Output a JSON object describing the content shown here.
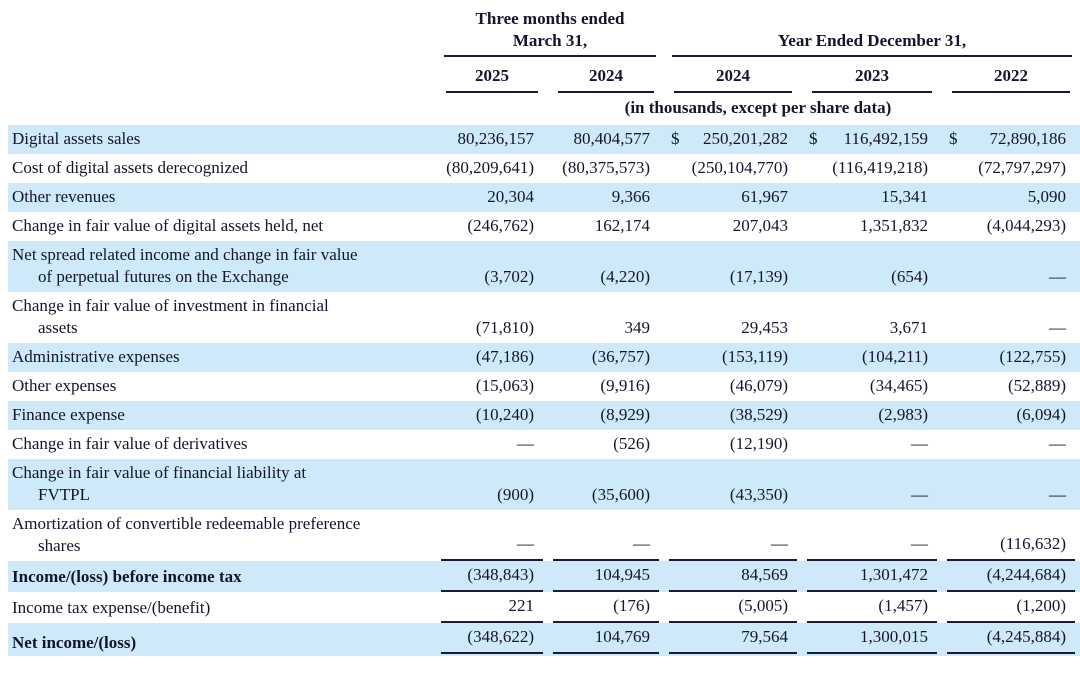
{
  "header": {
    "quarter_group_line1": "Three months ended",
    "quarter_group_line2": "March 31,",
    "year_group": "Year Ended December 31,",
    "columns": [
      "2025",
      "2024",
      "2024",
      "2023",
      "2022"
    ],
    "units_note": "(in thousands, except per share data)"
  },
  "colors": {
    "stripe": "#cde9fa",
    "text": "#14142c",
    "rule": "#1b1b33"
  },
  "rows": [
    {
      "label": "Digital assets sales",
      "cur": [
        "",
        "",
        "$",
        "$",
        "$"
      ],
      "v": [
        "80,236,157",
        "80,404,577",
        "250,201,282",
        "116,492,159",
        "72,890,186"
      ]
    },
    {
      "label": "Cost of digital assets derecognized",
      "v": [
        "(80,209,641)",
        "(80,375,573)",
        "(250,104,770)",
        "(116,419,218)",
        "(72,797,297)"
      ]
    },
    {
      "label": "Other revenues",
      "v": [
        "20,304",
        "9,366",
        "61,967",
        "15,341",
        "5,090"
      ]
    },
    {
      "label": "Change in fair value of digital assets held, net",
      "v": [
        "(246,762)",
        "162,174",
        "207,043",
        "1,351,832",
        "(4,044,293)"
      ]
    },
    {
      "label": "Net spread related income and change in fair value",
      "label2": "of perpetual futures on the Exchange",
      "v": [
        "(3,702)",
        "(4,220)",
        "(17,139)",
        "(654)",
        "—"
      ]
    },
    {
      "label": "Change in fair value of investment in financial",
      "label2": "assets",
      "v": [
        "(71,810)",
        "349",
        "29,453",
        "3,671",
        "—"
      ]
    },
    {
      "label": "Administrative expenses",
      "v": [
        "(47,186)",
        "(36,757)",
        "(153,119)",
        "(104,211)",
        "(122,755)"
      ]
    },
    {
      "label": "Other expenses",
      "v": [
        "(15,063)",
        "(9,916)",
        "(46,079)",
        "(34,465)",
        "(52,889)"
      ]
    },
    {
      "label": "Finance expense",
      "v": [
        "(10,240)",
        "(8,929)",
        "(38,529)",
        "(2,983)",
        "(6,094)"
      ]
    },
    {
      "label": "Change in fair value of derivatives",
      "v": [
        "—",
        "(526)",
        "(12,190)",
        "—",
        "—"
      ]
    },
    {
      "label": "Change in fair value of financial liability at",
      "label2": "FVTPL",
      "v": [
        "(900)",
        "(35,600)",
        "(43,350)",
        "—",
        "—"
      ]
    },
    {
      "label": "Amortization of convertible redeemable preference",
      "label2": "shares",
      "v": [
        "—",
        "—",
        "—",
        "—",
        "(116,632)"
      ]
    },
    {
      "label": "Income/(loss) before income tax",
      "v": [
        "(348,843)",
        "104,945",
        "84,569",
        "1,301,472",
        "(4,244,684)"
      ]
    },
    {
      "label": "Income tax expense/(benefit)",
      "v": [
        "221",
        "(176)",
        "(5,005)",
        "(1,457)",
        "(1,200)"
      ]
    },
    {
      "label": "Net income/(loss)",
      "v": [
        "(348,622)",
        "104,769",
        "79,564",
        "1,300,015",
        "(4,245,884)"
      ]
    }
  ]
}
